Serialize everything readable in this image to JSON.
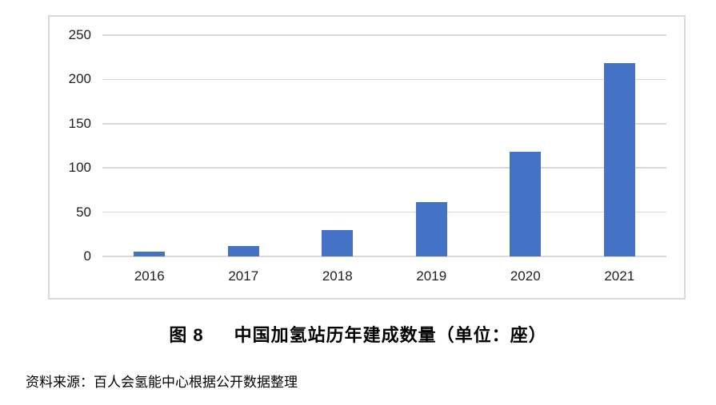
{
  "figure": {
    "label": "图 8",
    "title": "中国加氢站历年建成数量（单位：座）",
    "source": "资料来源：百人会氢能中心根据公开数据整理"
  },
  "chart_data": {
    "type": "bar",
    "categories": [
      "2016",
      "2017",
      "2018",
      "2019",
      "2020",
      "2021"
    ],
    "values": [
      5,
      12,
      30,
      61,
      118,
      218
    ],
    "title": "中国加氢站历年建成数量（单位：座）",
    "xlabel": "",
    "ylabel": "",
    "ylim": [
      0,
      250
    ],
    "yticks": [
      0,
      50,
      100,
      150,
      200,
      250
    ],
    "grid": true,
    "legend": false,
    "bar_color": "#4472C4",
    "gridline_color": "#D9D9D9",
    "frame_border_color": "#D9D9D9",
    "tick_text_color": "#1F1F1F"
  }
}
